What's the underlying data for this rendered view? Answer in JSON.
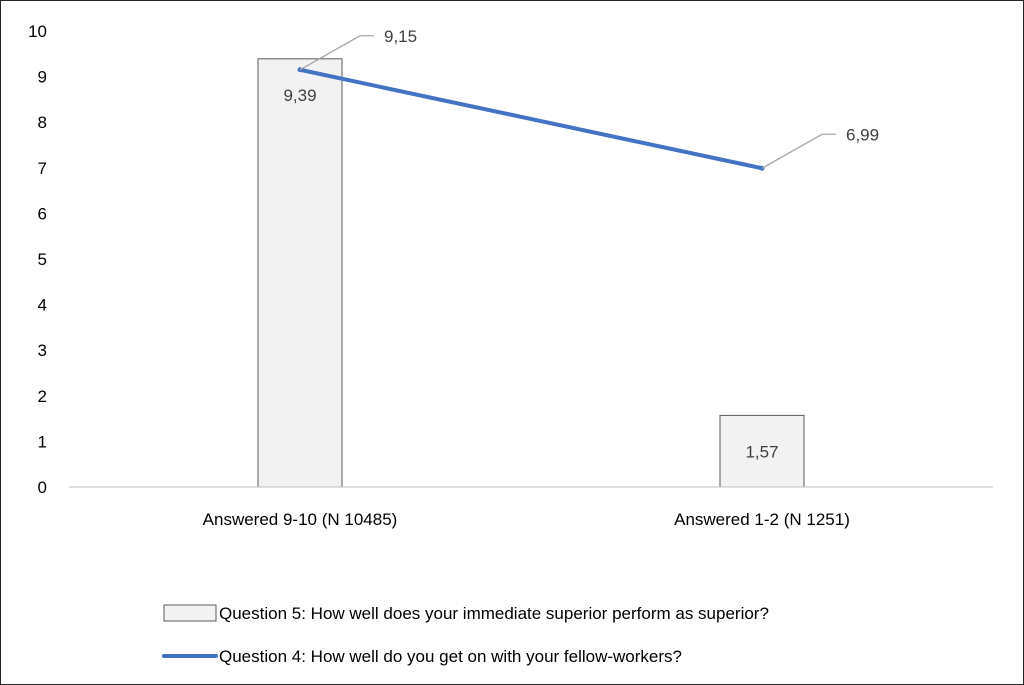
{
  "chart_data": {
    "type": "bar",
    "title": "",
    "xlabel": "",
    "ylabel": "",
    "ylim": [
      0,
      10
    ],
    "y_ticks": [
      "0",
      "1",
      "2",
      "3",
      "4",
      "5",
      "6",
      "7",
      "8",
      "9",
      "10"
    ],
    "grid": false,
    "legend_position": "bottom",
    "categories": [
      "Answered 9-10 (N 10485)",
      "Answered 1-2 (N 1251)"
    ],
    "series": [
      {
        "name": "Question 5: How well does your immediate superior perform as superior?",
        "type": "bar",
        "values": [
          9.39,
          1.57
        ],
        "labels": [
          "9,39",
          "1,57"
        ],
        "color": "#F2F2F2",
        "border_color": "#595959"
      },
      {
        "name": "Question 4: How well do you get on with your fellow-workers?",
        "type": "line",
        "values": [
          9.15,
          6.99
        ],
        "labels": [
          "9,15",
          "6,99"
        ],
        "color": "#4472C4"
      }
    ]
  }
}
